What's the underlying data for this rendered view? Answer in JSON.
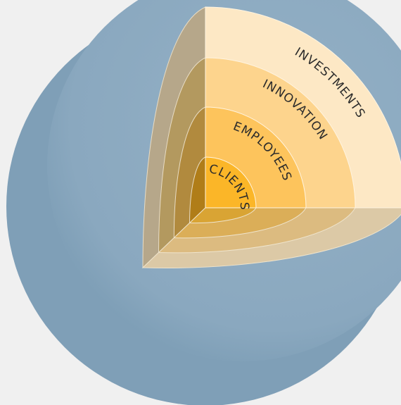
{
  "layers": [
    {
      "label": "CLIENTS"
    },
    {
      "label": "EMPLOYEES"
    },
    {
      "label": "INNOVATION"
    },
    {
      "label": "INVESTMENTS"
    }
  ]
}
